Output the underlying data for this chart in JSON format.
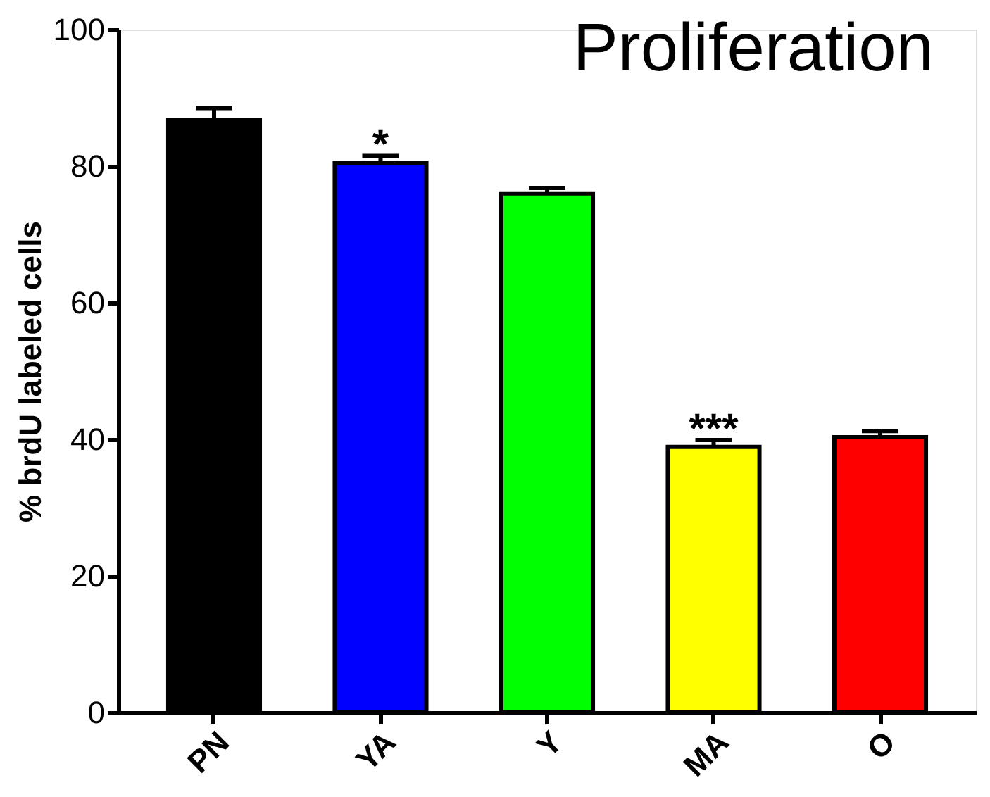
{
  "chart_data": {
    "type": "bar",
    "title": "Proliferation",
    "ylabel": "% brdU labeled cells",
    "categories": [
      "PN",
      "YA",
      "Y",
      "MA",
      "O"
    ],
    "values": [
      86.7,
      80.5,
      76,
      38.9,
      40.3
    ],
    "errors": [
      1.8,
      1,
      0.8,
      1,
      0.9
    ],
    "colors": [
      "#000000",
      "#0000ff",
      "#00ff00",
      "#ffff00",
      "#ff0000"
    ],
    "ylim": [
      0,
      100
    ],
    "yticks": [
      0,
      20,
      40,
      60,
      80,
      100
    ],
    "grid": false,
    "value_labels": [
      null,
      "*",
      null,
      "***",
      null
    ]
  }
}
